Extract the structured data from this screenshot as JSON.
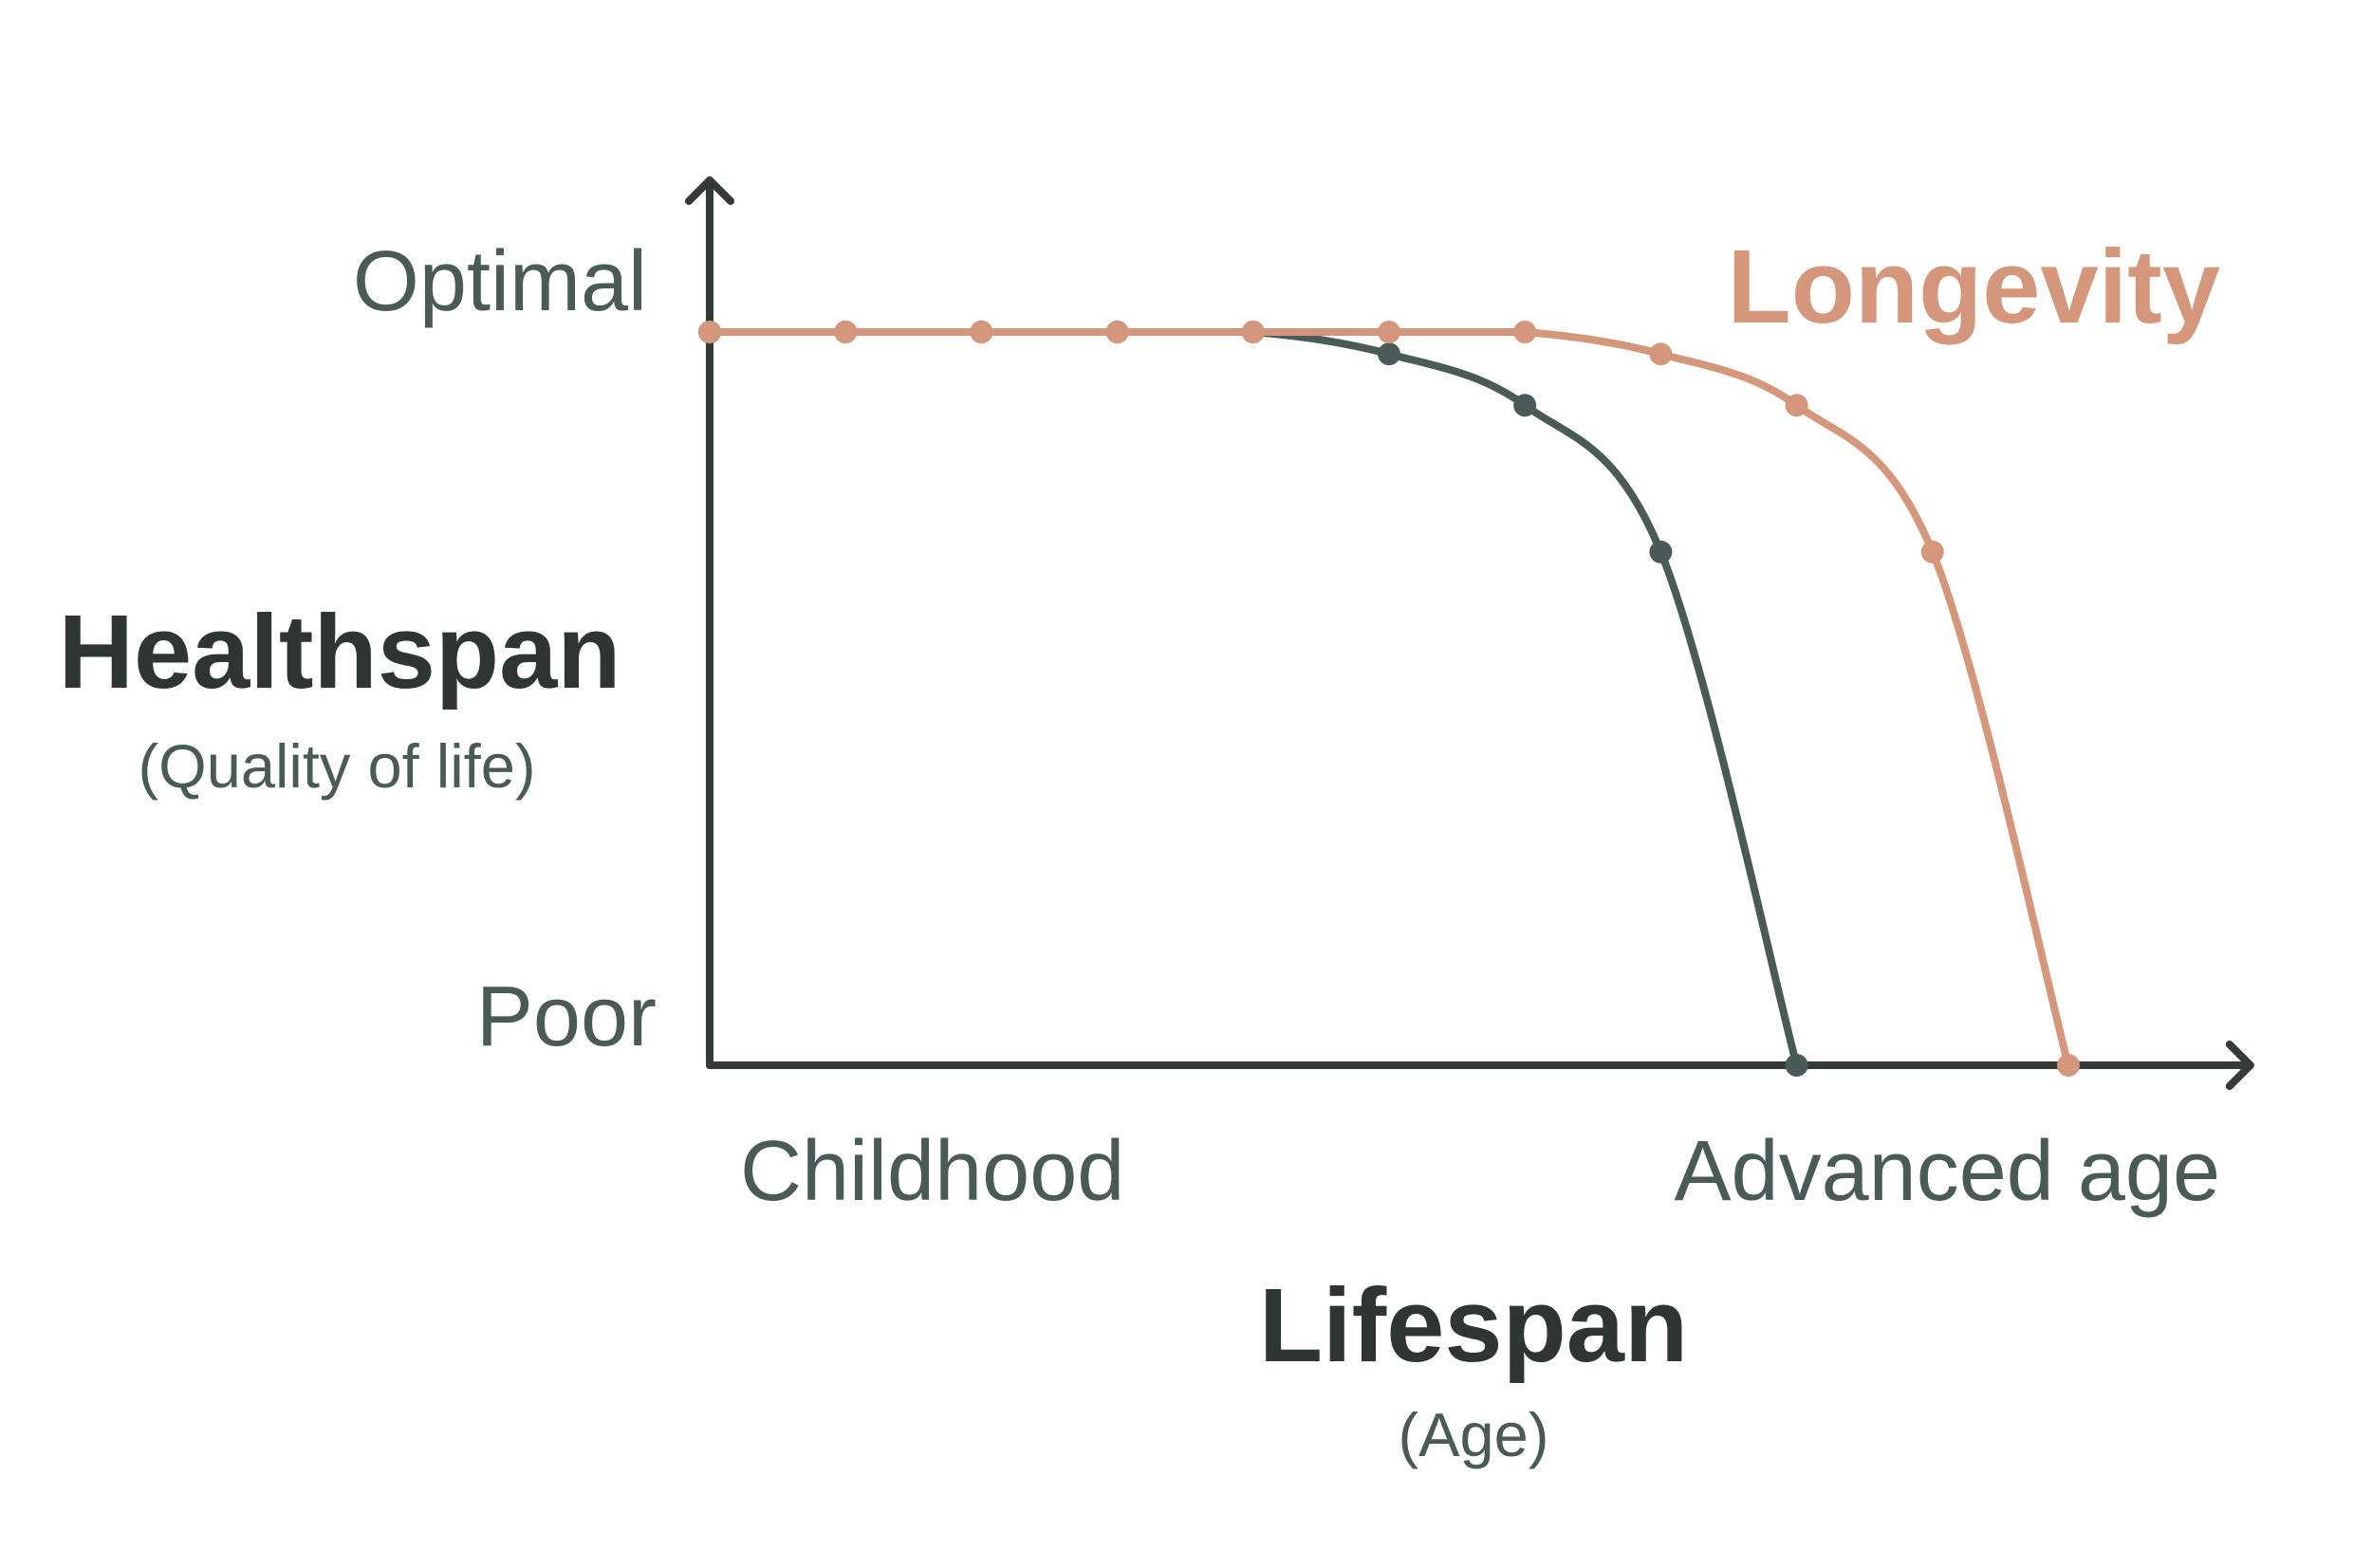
{
  "chart_data": {
    "type": "line",
    "title": "",
    "xlabel": "Lifespan",
    "xlabel_sub": "(Age)",
    "ylabel": "Healthspan",
    "ylabel_sub": "(Quality of life)",
    "x_ticks": {
      "start": "Childhood",
      "end": "Advanced age"
    },
    "y_ticks": {
      "top": "Optimal",
      "bottom": "Poor"
    },
    "xlim": [
      0,
      11.2
    ],
    "ylim": [
      0,
      1
    ],
    "grid": false,
    "series": [
      {
        "name": "",
        "color": "#4a5a57",
        "x": [
          0,
          1,
          2,
          3,
          4,
          5,
          6,
          7,
          8
        ],
        "y": [
          1,
          1,
          1,
          1,
          1,
          0.97,
          0.9,
          0.7,
          0
        ]
      },
      {
        "name": "Longevity",
        "color": "#d4977c",
        "x": [
          0,
          1,
          2,
          3,
          4,
          5,
          6,
          7,
          8,
          9,
          10
        ],
        "y": [
          1,
          1,
          1,
          1,
          1,
          1,
          1,
          0.97,
          0.9,
          0.7,
          0
        ]
      }
    ],
    "axis_color": "#333a38",
    "label_color": "#4a5a57",
    "title_color": "#2e3533"
  }
}
